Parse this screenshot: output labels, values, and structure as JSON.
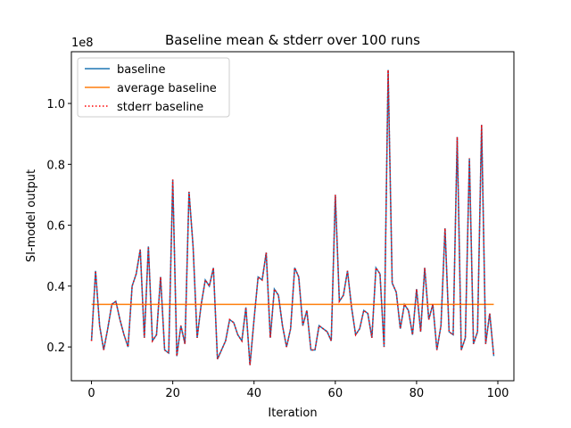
{
  "chart_data": {
    "type": "line",
    "title": "Baseline mean & stderr over 100 runs",
    "xlabel": "Iteration",
    "ylabel": "SI-model output",
    "y_offset_label": "1e8",
    "x": [
      0,
      1,
      2,
      3,
      4,
      5,
      6,
      7,
      8,
      9,
      10,
      11,
      12,
      13,
      14,
      15,
      16,
      17,
      18,
      19,
      20,
      21,
      22,
      23,
      24,
      25,
      26,
      27,
      28,
      29,
      30,
      31,
      32,
      33,
      34,
      35,
      36,
      37,
      38,
      39,
      40,
      41,
      42,
      43,
      44,
      45,
      46,
      47,
      48,
      49,
      50,
      51,
      52,
      53,
      54,
      55,
      56,
      57,
      58,
      59,
      60,
      61,
      62,
      63,
      64,
      65,
      66,
      67,
      68,
      69,
      70,
      71,
      72,
      73,
      74,
      75,
      76,
      77,
      78,
      79,
      80,
      81,
      82,
      83,
      84,
      85,
      86,
      87,
      88,
      89,
      90,
      91,
      92,
      93,
      94,
      95,
      96,
      97,
      98,
      99
    ],
    "series": [
      {
        "name": "baseline",
        "color": "#1f77b4",
        "style": "solid",
        "values": [
          0.22,
          0.45,
          0.27,
          0.19,
          0.26,
          0.34,
          0.35,
          0.29,
          0.24,
          0.2,
          0.4,
          0.44,
          0.52,
          0.23,
          0.53,
          0.22,
          0.24,
          0.43,
          0.19,
          0.18,
          0.75,
          0.17,
          0.27,
          0.21,
          0.71,
          0.53,
          0.23,
          0.34,
          0.42,
          0.4,
          0.46,
          0.16,
          0.19,
          0.22,
          0.29,
          0.28,
          0.24,
          0.22,
          0.33,
          0.14,
          0.29,
          0.43,
          0.42,
          0.51,
          0.23,
          0.39,
          0.37,
          0.27,
          0.2,
          0.26,
          0.46,
          0.43,
          0.27,
          0.32,
          0.19,
          0.19,
          0.27,
          0.26,
          0.25,
          0.22,
          0.7,
          0.35,
          0.37,
          0.45,
          0.33,
          0.24,
          0.26,
          0.32,
          0.31,
          0.23,
          0.46,
          0.44,
          0.2,
          1.11,
          0.41,
          0.38,
          0.26,
          0.34,
          0.32,
          0.24,
          0.39,
          0.25,
          0.46,
          0.29,
          0.34,
          0.19,
          0.27,
          0.59,
          0.25,
          0.24,
          0.89,
          0.19,
          0.23,
          0.82,
          0.21,
          0.25,
          0.93,
          0.21,
          0.31,
          0.17
        ]
      },
      {
        "name": "average baseline",
        "color": "#ff7f0e",
        "style": "solid",
        "values": [
          0.34,
          0.34,
          0.34,
          0.34,
          0.34,
          0.34,
          0.34,
          0.34,
          0.34,
          0.34,
          0.34,
          0.34,
          0.34,
          0.34,
          0.34,
          0.34,
          0.34,
          0.34,
          0.34,
          0.34,
          0.34,
          0.34,
          0.34,
          0.34,
          0.34,
          0.34,
          0.34,
          0.34,
          0.34,
          0.34,
          0.34,
          0.34,
          0.34,
          0.34,
          0.34,
          0.34,
          0.34,
          0.34,
          0.34,
          0.34,
          0.34,
          0.34,
          0.34,
          0.34,
          0.34,
          0.34,
          0.34,
          0.34,
          0.34,
          0.34,
          0.34,
          0.34,
          0.34,
          0.34,
          0.34,
          0.34,
          0.34,
          0.34,
          0.34,
          0.34,
          0.34,
          0.34,
          0.34,
          0.34,
          0.34,
          0.34,
          0.34,
          0.34,
          0.34,
          0.34,
          0.34,
          0.34,
          0.34,
          0.34,
          0.34,
          0.34,
          0.34,
          0.34,
          0.34,
          0.34,
          0.34,
          0.34,
          0.34,
          0.34,
          0.34,
          0.34,
          0.34,
          0.34,
          0.34,
          0.34,
          0.34,
          0.34,
          0.34,
          0.34,
          0.34,
          0.34,
          0.34,
          0.34,
          0.34,
          0.34
        ]
      },
      {
        "name": "stderr baseline",
        "color": "#ff0000",
        "style": "dotted",
        "values": [
          0.22,
          0.45,
          0.27,
          0.19,
          0.26,
          0.34,
          0.35,
          0.29,
          0.24,
          0.2,
          0.4,
          0.44,
          0.52,
          0.23,
          0.53,
          0.22,
          0.24,
          0.43,
          0.19,
          0.18,
          0.75,
          0.17,
          0.27,
          0.21,
          0.71,
          0.53,
          0.23,
          0.34,
          0.42,
          0.4,
          0.46,
          0.16,
          0.19,
          0.22,
          0.29,
          0.28,
          0.24,
          0.22,
          0.33,
          0.14,
          0.29,
          0.43,
          0.42,
          0.51,
          0.23,
          0.39,
          0.37,
          0.27,
          0.2,
          0.26,
          0.46,
          0.43,
          0.27,
          0.32,
          0.19,
          0.19,
          0.27,
          0.26,
          0.25,
          0.22,
          0.7,
          0.35,
          0.37,
          0.45,
          0.33,
          0.24,
          0.26,
          0.32,
          0.31,
          0.23,
          0.46,
          0.44,
          0.2,
          1.11,
          0.41,
          0.38,
          0.26,
          0.34,
          0.32,
          0.24,
          0.39,
          0.25,
          0.46,
          0.29,
          0.34,
          0.19,
          0.27,
          0.59,
          0.25,
          0.24,
          0.89,
          0.19,
          0.23,
          0.82,
          0.21,
          0.25,
          0.93,
          0.21,
          0.31,
          0.17
        ]
      }
    ],
    "xlim": [
      -4.95,
      103.95
    ],
    "ylim": [
      0.089,
      1.17
    ],
    "xticks": [
      0,
      20,
      40,
      60,
      80,
      100
    ],
    "yticks": [
      0.2,
      0.4,
      0.6,
      0.8,
      {
        "value": 1.0,
        "label": "1.0"
      }
    ],
    "legend": "upper left",
    "grid": false
  }
}
